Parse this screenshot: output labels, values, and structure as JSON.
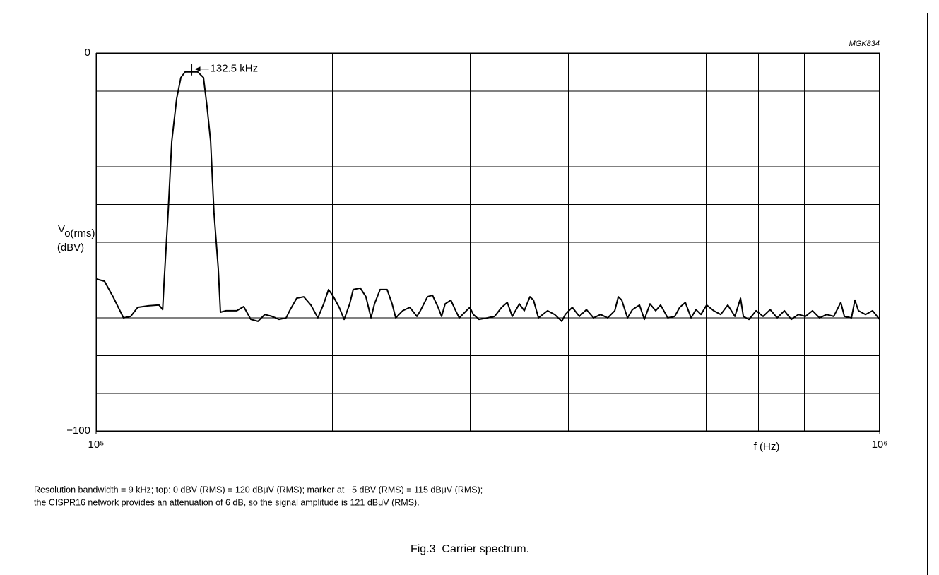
{
  "chart_data": {
    "type": "line",
    "code": "MGK834",
    "y_label": "V",
    "y_label_sub": "o(rms)",
    "y_unit": "(dBV)",
    "x_label": "f (Hz)",
    "log_x": true,
    "grid": true,
    "color": "#000000",
    "xlim": [
      100000,
      1000000
    ],
    "xticks": [
      {
        "value": 100000,
        "label": "10⁵"
      },
      {
        "value": 1000000,
        "label": "10⁶"
      }
    ],
    "xgrid": [
      200000,
      300000,
      400000,
      500000,
      600000,
      700000,
      800000,
      900000
    ],
    "ylim": [
      -100,
      0
    ],
    "yticks": [
      0,
      {
        "value": -100,
        "label": "−100"
      }
    ],
    "ygrid": [
      -90,
      -80,
      -70,
      -60,
      -50,
      -40,
      -30,
      -20,
      -10
    ],
    "annotation": {
      "text": "132.5 kHz",
      "x": 132500,
      "y": -5
    },
    "x": [
      100000,
      102500,
      105100,
      108400,
      110700,
      113000,
      116600,
      120300,
      121600,
      122100,
      123600,
      124900,
      126700,
      128300,
      129900,
      134800,
      137100,
      138500,
      140000,
      141400,
      143200,
      144100,
      146500,
      151200,
      154300,
      157600,
      160900,
      164200,
      167700,
      171200,
      174800,
      176600,
      180300,
      184100,
      188000,
      191900,
      195200,
      198000,
      200900,
      204300,
      207300,
      210700,
      212900,
      217400,
      221000,
      224300,
      226600,
      230400,
      235200,
      238700,
      241200,
      246200,
      251400,
      256700,
      259300,
      264800,
      268700,
      273200,
      276000,
      278900,
      283600,
      287700,
      290700,
      296800,
      299900,
      303000,
      308100,
      315900,
      322500,
      329300,
      334800,
      339700,
      346900,
      351900,
      357800,
      361600,
      366900,
      376900,
      384800,
      392900,
      397000,
      405300,
      413800,
      422500,
      431400,
      440400,
      449600,
      459100,
      463900,
      468700,
      476600,
      483600,
      493700,
      500900,
      509300,
      517800,
      525400,
      536500,
      547700,
      555700,
      565000,
      574500,
      582900,
      591500,
      601400,
      614000,
      626900,
      640000,
      653500,
      664400,
      670000,
      681200,
      695500,
      710000,
      725000,
      740100,
      755700,
      771400,
      787600,
      804100,
      821000,
      838200,
      855800,
      873800,
      892100,
      901500,
      920400,
      930000,
      939700,
      959400,
      979500,
      1000000
    ],
    "values": [
      -59.8,
      -60.4,
      -64.5,
      -70.1,
      -69.7,
      -67.3,
      -66.9,
      -66.7,
      -67.9,
      -60.7,
      -42.1,
      -23.4,
      -12.1,
      -6.5,
      -5.0,
      -5.0,
      -6.5,
      -14.0,
      -23.4,
      -42.1,
      -57.0,
      -68.6,
      -68.2,
      -68.2,
      -67.1,
      -70.5,
      -71.0,
      -69.2,
      -69.7,
      -70.5,
      -70.1,
      -68.2,
      -64.9,
      -64.5,
      -66.7,
      -70.1,
      -66.4,
      -62.6,
      -64.5,
      -67.3,
      -70.5,
      -66.4,
      -62.6,
      -62.2,
      -64.5,
      -70.1,
      -66.4,
      -62.6,
      -62.6,
      -66.4,
      -70.1,
      -68.2,
      -67.3,
      -69.7,
      -68.2,
      -64.5,
      -64.1,
      -67.3,
      -69.7,
      -66.4,
      -65.4,
      -68.2,
      -70.1,
      -68.2,
      -67.3,
      -69.2,
      -70.5,
      -70.1,
      -69.7,
      -67.3,
      -66.0,
      -69.7,
      -66.4,
      -68.2,
      -64.5,
      -65.4,
      -70.1,
      -68.2,
      -69.2,
      -71.0,
      -69.2,
      -67.3,
      -69.7,
      -67.9,
      -70.1,
      -69.2,
      -70.1,
      -68.2,
      -64.5,
      -65.4,
      -70.1,
      -67.9,
      -66.7,
      -70.5,
      -66.4,
      -68.2,
      -66.7,
      -70.1,
      -69.7,
      -67.3,
      -66.0,
      -70.1,
      -67.9,
      -69.2,
      -66.7,
      -68.2,
      -69.2,
      -66.7,
      -69.7,
      -64.9,
      -69.7,
      -70.5,
      -68.2,
      -69.7,
      -67.9,
      -70.1,
      -68.2,
      -70.5,
      -69.2,
      -69.7,
      -68.2,
      -70.1,
      -69.2,
      -69.7,
      -66.0,
      -69.7,
      -70.1,
      -65.4,
      -68.2,
      -69.2,
      -68.2,
      -70.5
    ],
    "notes": [
      "Resolution bandwidth = 9 kHz; top: 0 dBV (RMS) = 120 dBμV (RMS); marker at −5 dBV (RMS) = 115 dBμV (RMS);",
      "the CISPR16 network provides an attenuation of 6 dB, so the signal amplitude is 121 dBμV (RMS)."
    ],
    "caption": "Fig.3  Carrier spectrum."
  }
}
